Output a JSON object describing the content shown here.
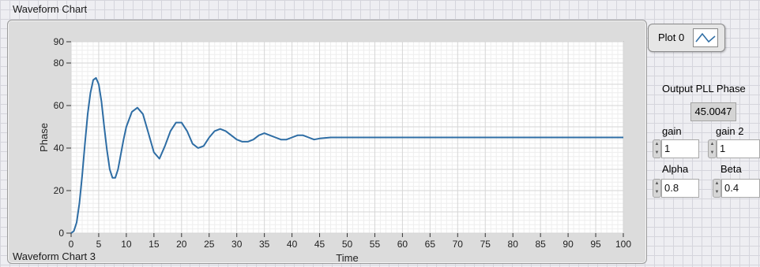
{
  "chart": {
    "title": "Waveform Chart",
    "caption": "Waveform Chart 3"
  },
  "legend": {
    "label": "Plot 0",
    "icon": "line-plot-icon"
  },
  "indicator": {
    "title": "Output PLL Phase",
    "value": "45.0047"
  },
  "controls": {
    "gain": {
      "label": "gain",
      "value": "1"
    },
    "gain2": {
      "label": "gain 2",
      "value": "1"
    },
    "alpha": {
      "label": "Alpha",
      "value": "0.8"
    },
    "beta": {
      "label": "Beta",
      "value": "0.4"
    }
  },
  "colors": {
    "series": "#2e6da4",
    "plot_bg": "#ffffff",
    "frame": "#dcdcdc"
  },
  "chart_data": {
    "type": "line",
    "xlabel": "Time",
    "ylabel": "Phase",
    "xlim": [
      0,
      100
    ],
    "ylim": [
      0,
      90
    ],
    "xticks": [
      0,
      5,
      10,
      15,
      20,
      25,
      30,
      35,
      40,
      45,
      50,
      55,
      60,
      65,
      70,
      75,
      80,
      85,
      90,
      95,
      100
    ],
    "yticks": [
      0,
      20,
      40,
      60,
      80,
      90
    ],
    "grid": true,
    "series": [
      {
        "x": [
          0,
          0.5,
          1,
          1.5,
          2,
          2.5,
          3,
          3.5,
          4,
          4.5,
          5,
          5.5,
          6,
          6.5,
          7,
          7.5,
          8,
          8.5,
          9,
          9.5,
          10,
          11,
          12,
          13,
          14,
          15,
          16,
          17,
          18,
          19,
          20,
          21,
          22,
          23,
          24,
          25,
          26,
          27,
          28,
          29,
          30,
          31,
          32,
          33,
          34,
          35,
          36,
          37,
          38,
          39,
          40,
          41,
          42,
          43,
          44,
          45,
          47,
          50,
          55,
          60,
          65,
          70,
          75,
          80,
          85,
          90,
          95,
          100
        ],
        "y": [
          0,
          1,
          5,
          14,
          27,
          42,
          56,
          66,
          72,
          73,
          70,
          62,
          50,
          39,
          30,
          26,
          26,
          30,
          37,
          44,
          50,
          57,
          59,
          56,
          47,
          38,
          35,
          41,
          48,
          52,
          52,
          48,
          42,
          40,
          41,
          45,
          48,
          49,
          48,
          46,
          44,
          43,
          43,
          44,
          46,
          47,
          46,
          45,
          44,
          44,
          45,
          46,
          46,
          45,
          44,
          44.5,
          45,
          45,
          45,
          45,
          45,
          45,
          45,
          45,
          45,
          45,
          45,
          45
        ]
      }
    ]
  }
}
